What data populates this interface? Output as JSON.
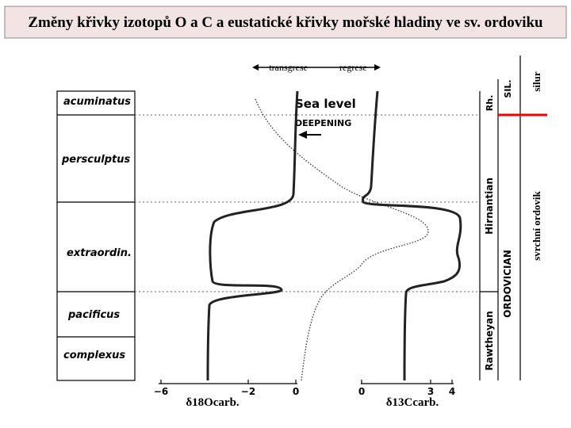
{
  "header": {
    "title": "Změny křivky izotopů O a C a eustatické křivky mořské hladiny ve sv. ordoviku"
  },
  "legend": {
    "left": "transgrese",
    "right": "regrese"
  },
  "sea_level": {
    "title": "Sea level",
    "subtitle": "DEEPENING"
  },
  "zones": [
    "acuminatus",
    "persculptus",
    "extraordin.",
    "pacificus",
    "complexus"
  ],
  "stages": [
    "Rh.",
    "Hirnantian",
    "Rawtheyan"
  ],
  "systems": [
    "SIL.",
    "ORDOVICIAN"
  ],
  "periods": [
    "silur",
    "svrchní ordovik"
  ],
  "oxygen_axis": {
    "ticks": [
      "−6",
      "−2",
      "0"
    ],
    "label": "δ18Ocarb."
  },
  "carbon_axis": {
    "ticks": [
      "0",
      "3",
      "4"
    ],
    "label": "δ13Ccarb."
  }
}
